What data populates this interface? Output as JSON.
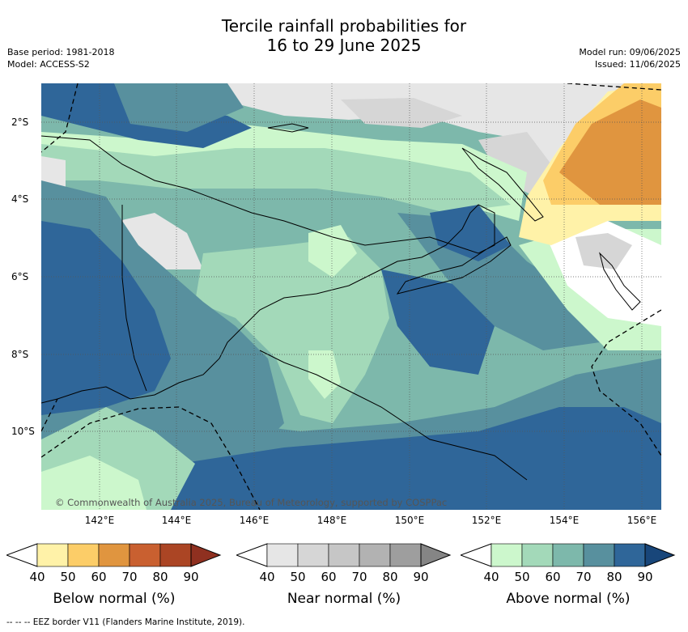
{
  "title": {
    "line1": "Tercile rainfall probabilities for",
    "line2": "16 to 29 June 2025"
  },
  "meta_left": {
    "base_period": "Base period: 1981-2018",
    "model": "Model: ACCESS-S2"
  },
  "meta_right": {
    "model_run": "Model run: 09/06/2025",
    "issued": "Issued: 11/06/2025"
  },
  "map": {
    "latitude_labels": [
      "2°S",
      "4°S",
      "6°S",
      "8°S",
      "10°S"
    ],
    "longitude_labels": [
      "142°E",
      "144°E",
      "146°E",
      "148°E",
      "150°E",
      "152°E",
      "154°E",
      "156°E"
    ],
    "copyright": "© Commonwealth of Australia 2025, Bureau of Meteorology, supported by COSPPac",
    "gridlines": "dotted",
    "eez_border": "dashed"
  },
  "legends": [
    {
      "title": "Below normal (%)",
      "ticks": [
        "40",
        "50",
        "60",
        "70",
        "80",
        "90"
      ],
      "colors": [
        "#fff2a8",
        "#fccd68",
        "#e0953f",
        "#c96030",
        "#ab4524",
        "#8f3020"
      ]
    },
    {
      "title": "Near normal (%)",
      "ticks": [
        "40",
        "50",
        "60",
        "70",
        "80",
        "90"
      ],
      "colors": [
        "#e6e6e6",
        "#d6d6d6",
        "#c6c6c6",
        "#b2b2b2",
        "#9e9e9e",
        "#858585"
      ]
    },
    {
      "title": "Above normal (%)",
      "ticks": [
        "40",
        "50",
        "60",
        "70",
        "80",
        "90"
      ],
      "colors": [
        "#ccf7cc",
        "#a3d9b9",
        "#7db8ab",
        "#58909e",
        "#2f6699",
        "#18467a"
      ]
    }
  ],
  "footer": "--  --  -- EEZ border V11 (Flanders Marine Institute, 2019)."
}
